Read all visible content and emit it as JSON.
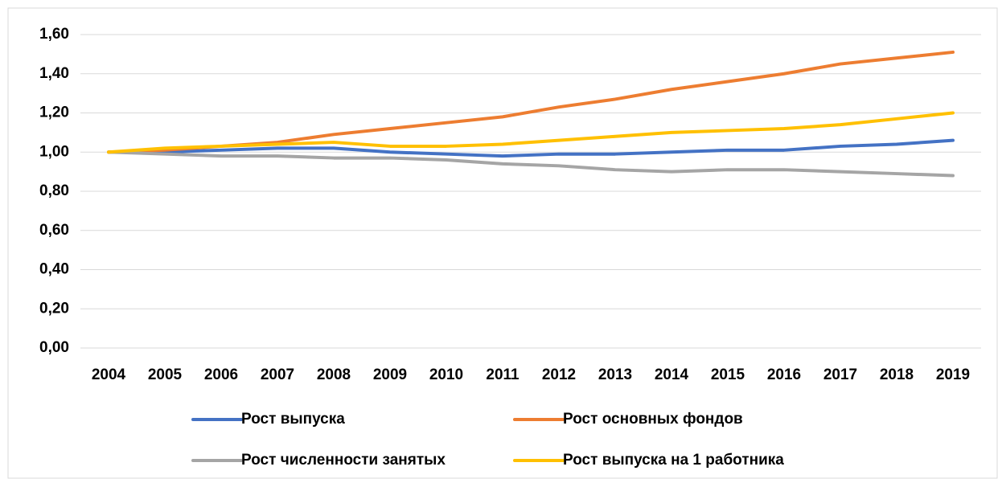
{
  "chart_data": {
    "type": "line",
    "categories": [
      "2004",
      "2005",
      "2006",
      "2007",
      "2008",
      "2009",
      "2010",
      "2011",
      "2012",
      "2013",
      "2014",
      "2015",
      "2016",
      "2017",
      "2018",
      "2019"
    ],
    "series": [
      {
        "name": "Рост выпуска",
        "color": "#4472c4",
        "values": [
          1.0,
          1.0,
          1.01,
          1.02,
          1.02,
          1.0,
          0.99,
          0.98,
          0.99,
          0.99,
          1.0,
          1.01,
          1.01,
          1.03,
          1.04,
          1.06
        ]
      },
      {
        "name": "Рост основных фондов",
        "color": "#ed7d31",
        "values": [
          1.0,
          1.01,
          1.03,
          1.05,
          1.09,
          1.12,
          1.15,
          1.18,
          1.23,
          1.27,
          1.32,
          1.36,
          1.4,
          1.45,
          1.48,
          1.51
        ]
      },
      {
        "name": "Рост численности занятых",
        "color": "#a5a5a5",
        "values": [
          1.0,
          0.99,
          0.98,
          0.98,
          0.97,
          0.97,
          0.96,
          0.94,
          0.93,
          0.91,
          0.9,
          0.91,
          0.91,
          0.9,
          0.89,
          0.88
        ]
      },
      {
        "name": "Рост выпуска на 1 работника",
        "color": "#ffc000",
        "values": [
          1.0,
          1.02,
          1.03,
          1.04,
          1.05,
          1.03,
          1.03,
          1.04,
          1.06,
          1.08,
          1.1,
          1.11,
          1.12,
          1.14,
          1.17,
          1.2
        ]
      }
    ],
    "ylim": [
      0,
      1.6
    ],
    "yticks": [
      {
        "value": 0,
        "label": "0,00"
      },
      {
        "value": 0.2,
        "label": "0,20"
      },
      {
        "value": 0.4,
        "label": "0,40"
      },
      {
        "value": 0.6,
        "label": "0,60"
      },
      {
        "value": 0.8,
        "label": "0,80"
      },
      {
        "value": 1.0,
        "label": "1,00"
      },
      {
        "value": 1.2,
        "label": "1,20"
      },
      {
        "value": 1.4,
        "label": "1,40"
      },
      {
        "value": 1.6,
        "label": "1,60"
      }
    ],
    "grid": true,
    "legend": "bottom"
  }
}
